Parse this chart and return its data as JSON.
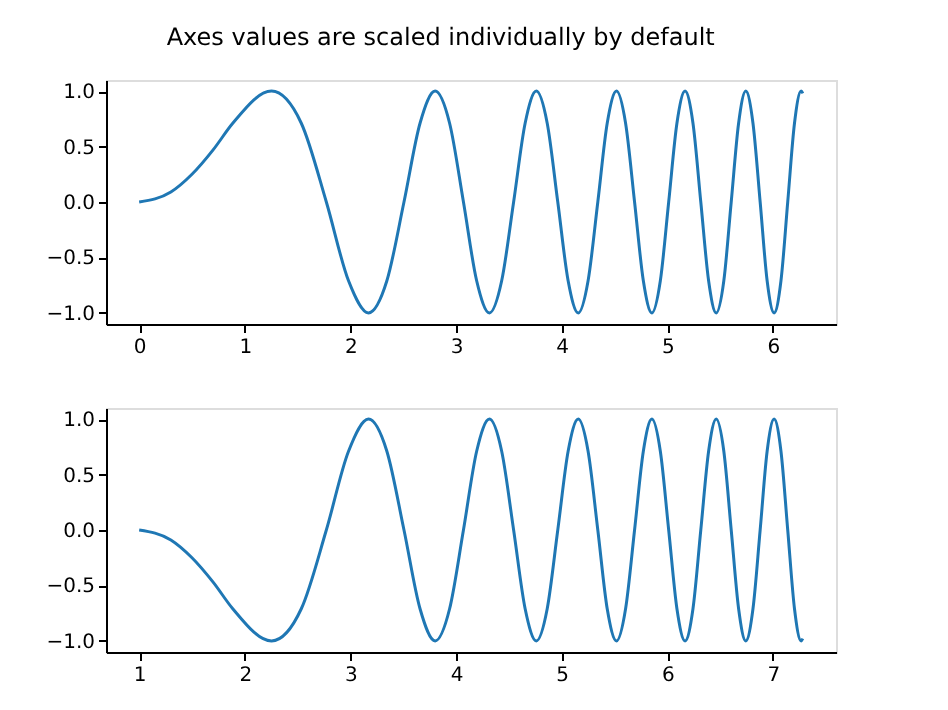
{
  "chart_data": [
    {
      "type": "line",
      "title": "Axes values are scaled individually by default",
      "grid": false,
      "xlim": [
        -0.314,
        6.597
      ],
      "xticks": [
        0,
        1,
        2,
        3,
        4,
        5,
        6
      ],
      "ylim": [
        -1.1,
        1.1
      ],
      "yticks": [
        {
          "value": -1,
          "label": "−1.0"
        },
        {
          "value": -0.5,
          "label": "−0.5"
        },
        {
          "value": 0,
          "label": "0.0"
        },
        {
          "value": 0.5,
          "label": "0.5"
        },
        {
          "value": 1,
          "label": "1.0"
        }
      ],
      "series": [
        {
          "color": "#1f77b4",
          "x": [
            0,
            0.3,
            0.5,
            0.7,
            0.886,
            1.253,
            1.535,
            1.772,
            1.982,
            2.171,
            2.345,
            2.507,
            2.659,
            2.802,
            2.939,
            3.07,
            3.195,
            3.316,
            3.432,
            3.545,
            3.654,
            3.76,
            3.863,
            3.963,
            4.061,
            4.157,
            4.25,
            4.342,
            4.431,
            4.519,
            4.605,
            4.69,
            4.773,
            4.854,
            4.934,
            5.013,
            5.091,
            5.168,
            5.243,
            5.317,
            5.391,
            5.463,
            5.535,
            5.605,
            5.675,
            5.743,
            5.811,
            5.879,
            5.945,
            6.011,
            6.076,
            6.14,
            6.204,
            6.267,
            6.283
          ],
          "values": [
            0,
            0.09,
            0.25,
            0.47,
            0.71,
            1,
            0.71,
            0,
            -0.71,
            -1,
            -0.71,
            0,
            0.71,
            1,
            0.71,
            0,
            -0.71,
            -1,
            -0.71,
            0,
            0.71,
            1,
            0.71,
            0,
            -0.71,
            -1,
            -0.71,
            0,
            0.71,
            1,
            0.71,
            0,
            -0.71,
            -1,
            -0.71,
            0,
            0.71,
            1,
            0.71,
            0,
            -0.71,
            -1,
            -0.71,
            0,
            0.71,
            1,
            0.71,
            0,
            -0.71,
            -1,
            -0.71,
            0,
            0.71,
            1,
            0.98
          ]
        }
      ]
    },
    {
      "type": "line",
      "grid": false,
      "xlim": [
        0.686,
        7.597
      ],
      "xticks": [
        1,
        2,
        3,
        4,
        5,
        6,
        7
      ],
      "ylim": [
        -1.1,
        1.1
      ],
      "yticks": [
        {
          "value": -1,
          "label": "−1.0"
        },
        {
          "value": -0.5,
          "label": "−0.5"
        },
        {
          "value": 0,
          "label": "0.0"
        },
        {
          "value": 0.5,
          "label": "0.5"
        },
        {
          "value": 1,
          "label": "1.0"
        }
      ],
      "series": [
        {
          "color": "#1f77b4",
          "x": [
            1,
            1.3,
            1.5,
            1.7,
            1.886,
            2.253,
            2.535,
            2.772,
            2.982,
            3.171,
            3.345,
            3.507,
            3.659,
            3.802,
            3.939,
            4.07,
            4.195,
            4.316,
            4.432,
            4.545,
            4.654,
            4.76,
            4.863,
            4.963,
            5.061,
            5.157,
            5.25,
            5.342,
            5.431,
            5.519,
            5.605,
            5.69,
            5.773,
            5.854,
            5.934,
            6.013,
            6.091,
            6.168,
            6.243,
            6.317,
            6.391,
            6.463,
            6.535,
            6.605,
            6.675,
            6.743,
            6.811,
            6.879,
            6.945,
            7.011,
            7.076,
            7.14,
            7.204,
            7.267,
            7.283
          ],
          "values": [
            0,
            -0.09,
            -0.25,
            -0.47,
            -0.71,
            -1,
            -0.71,
            0,
            0.71,
            1,
            0.71,
            0,
            -0.71,
            -1,
            -0.71,
            0,
            0.71,
            1,
            0.71,
            0,
            -0.71,
            -1,
            -0.71,
            0,
            0.71,
            1,
            0.71,
            0,
            -0.71,
            -1,
            -0.71,
            0,
            0.71,
            1,
            0.71,
            0,
            -0.71,
            -1,
            -0.71,
            0,
            0.71,
            1,
            0.71,
            0,
            -0.71,
            -1,
            -0.71,
            0,
            0.71,
            1,
            0.71,
            0,
            -0.71,
            -1,
            -0.98
          ]
        }
      ]
    }
  ]
}
